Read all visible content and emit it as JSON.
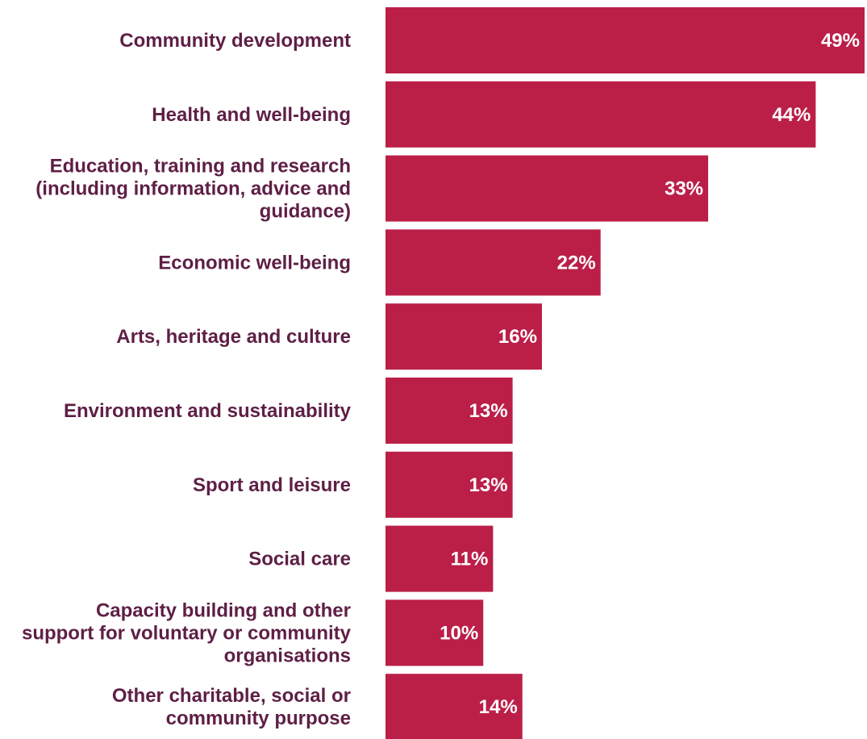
{
  "colors": {
    "bar": "#bb1f48",
    "label": "#5e1f45",
    "value_text": "#ffffff"
  },
  "chart_data": {
    "type": "bar",
    "orientation": "horizontal",
    "categories": [
      [
        "Community development"
      ],
      [
        "Health and well-being"
      ],
      [
        "Education, training and research",
        "(including information, advice and",
        "guidance)"
      ],
      [
        "Economic well-being"
      ],
      [
        "Arts, heritage and culture"
      ],
      [
        "Environment and sustainability"
      ],
      [
        "Sport and leisure"
      ],
      [
        "Social care"
      ],
      [
        "Capacity building and other",
        "support for voluntary or community",
        "organisations"
      ],
      [
        "Other charitable, social or",
        "community purpose"
      ]
    ],
    "values": [
      49,
      44,
      33,
      22,
      16,
      13,
      13,
      11,
      10,
      14
    ],
    "value_labels": [
      "49%",
      "44%",
      "33%",
      "22%",
      "16%",
      "13%",
      "13%",
      "11%",
      "10%",
      "14%"
    ],
    "unit": "%",
    "xlim": [
      0,
      49
    ],
    "grid": false,
    "legend": "none"
  }
}
